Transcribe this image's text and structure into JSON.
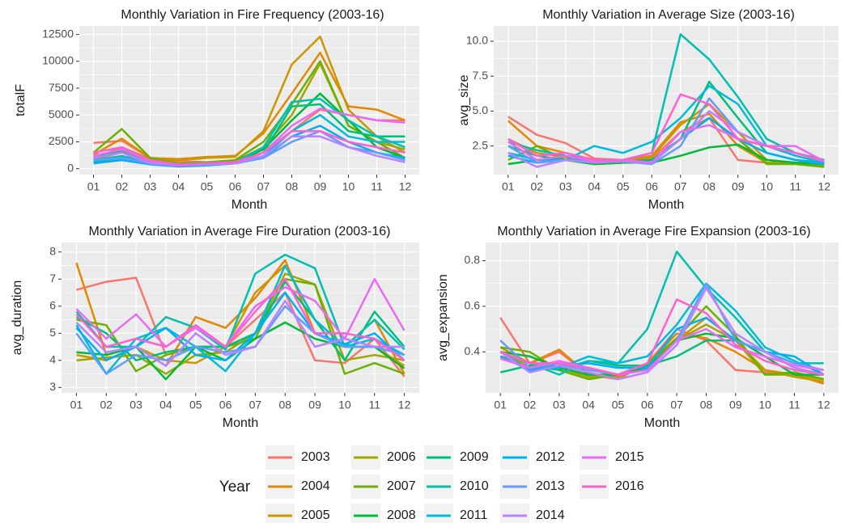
{
  "chart_data": [
    {
      "type": "line",
      "title": "Monthly Variation in Fire Frequency (2003-16)",
      "x_label": "Month",
      "y_label": "totalF",
      "categories": [
        "01",
        "02",
        "03",
        "04",
        "05",
        "06",
        "07",
        "08",
        "09",
        "10",
        "11",
        "12"
      ],
      "ylim": [
        -550,
        13300
      ],
      "yticks": [
        0,
        2500,
        5000,
        7500,
        10000,
        12500
      ],
      "grid": true,
      "series": [
        {
          "values": [
            2400,
            2600,
            1000,
            700,
            600,
            700,
            1500,
            3500,
            5500,
            5000,
            4500,
            4500
          ]
        },
        {
          "values": [
            1300,
            2800,
            1000,
            900,
            1100,
            1200,
            3300,
            7000,
            10800,
            5800,
            5500,
            4500
          ]
        },
        {
          "values": [
            1000,
            2000,
            900,
            800,
            1000,
            1100,
            3500,
            9700,
            12300,
            5500,
            3000,
            1500
          ]
        },
        {
          "values": [
            900,
            1500,
            800,
            500,
            600,
            700,
            2000,
            5000,
            9800,
            4000,
            2500,
            1800
          ]
        },
        {
          "values": [
            1500,
            3700,
            1000,
            500,
            600,
            800,
            2500,
            6000,
            10000,
            4000,
            2500,
            1000
          ]
        },
        {
          "values": [
            600,
            1000,
            600,
            400,
            500,
            600,
            1800,
            4500,
            7000,
            4500,
            2000,
            1000
          ]
        },
        {
          "values": [
            1200,
            1600,
            700,
            400,
            500,
            500,
            1500,
            5800,
            6000,
            3500,
            3000,
            3000
          ]
        },
        {
          "values": [
            800,
            1200,
            600,
            400,
            500,
            600,
            2000,
            6200,
            6500,
            4500,
            3000,
            2000
          ]
        },
        {
          "values": [
            700,
            1000,
            500,
            300,
            400,
            500,
            1200,
            3500,
            5000,
            3000,
            2500,
            2500
          ]
        },
        {
          "values": [
            500,
            800,
            400,
            200,
            300,
            500,
            1000,
            3000,
            4000,
            2500,
            1500,
            1000
          ]
        },
        {
          "values": [
            800,
            1000,
            500,
            300,
            400,
            500,
            1000,
            2500,
            3500,
            2000,
            1500,
            800
          ]
        },
        {
          "values": [
            1000,
            1500,
            500,
            300,
            400,
            500,
            1200,
            3000,
            3000,
            2000,
            1200,
            600
          ]
        },
        {
          "values": [
            1200,
            1800,
            700,
            400,
            500,
            600,
            1500,
            4000,
            5600,
            5000,
            4500,
            4300
          ]
        },
        {
          "values": [
            1500,
            2000,
            800,
            400,
            500,
            600,
            1500,
            3500,
            3500,
            2500,
            2000,
            1500
          ]
        }
      ]
    },
    {
      "type": "line",
      "title": "Monthly Variation in Average Size (2003-16)",
      "x_label": "Month",
      "y_label": "avg_size",
      "categories": [
        "01",
        "02",
        "03",
        "04",
        "05",
        "06",
        "07",
        "08",
        "09",
        "10",
        "11",
        "12"
      ],
      "ylim": [
        0.45,
        11.1
      ],
      "yticks": [
        {
          "value": 2.5,
          "label": "2.5"
        },
        {
          "value": 5,
          "label": "5.0"
        },
        {
          "value": 7.5,
          "label": "7.5"
        },
        {
          "value": 10,
          "label": "10.0"
        }
      ],
      "grid": true,
      "series": [
        {
          "values": [
            4.6,
            3.3,
            2.7,
            1.6,
            1.5,
            1.6,
            3.5,
            4.5,
            1.5,
            1.3,
            1.3,
            1.2
          ]
        },
        {
          "values": [
            4.3,
            2.5,
            2.0,
            1.5,
            1.5,
            1.8,
            4.2,
            4.8,
            2.5,
            1.3,
            1.3,
            1.1
          ]
        },
        {
          "values": [
            3.0,
            2.0,
            1.7,
            1.3,
            1.3,
            1.7,
            4.0,
            5.5,
            3.5,
            1.5,
            1.3,
            1.0
          ]
        },
        {
          "values": [
            2.0,
            1.5,
            1.5,
            1.2,
            1.3,
            1.5,
            3.0,
            4.5,
            3.0,
            1.3,
            1.3,
            1.1
          ]
        },
        {
          "values": [
            1.5,
            2.5,
            1.5,
            1.2,
            1.3,
            1.5,
            3.0,
            4.5,
            3.0,
            1.2,
            1.2,
            1.0
          ]
        },
        {
          "values": [
            1.2,
            1.5,
            1.5,
            1.2,
            1.3,
            1.3,
            1.8,
            2.4,
            2.6,
            1.5,
            1.3,
            1.2
          ]
        },
        {
          "values": [
            2.5,
            1.8,
            1.5,
            1.3,
            1.4,
            1.5,
            3.0,
            7.1,
            4.5,
            2.0,
            1.5,
            1.3
          ]
        },
        {
          "values": [
            2.8,
            2.2,
            1.8,
            1.5,
            1.5,
            2.0,
            10.5,
            8.7,
            6.0,
            3.0,
            2.0,
            1.5
          ]
        },
        {
          "values": [
            2.0,
            1.5,
            1.5,
            2.5,
            2.0,
            2.8,
            4.5,
            6.8,
            5.5,
            2.5,
            1.8,
            1.3
          ]
        },
        {
          "values": [
            1.8,
            1.3,
            1.5,
            1.5,
            1.5,
            1.3,
            3.0,
            4.5,
            3.0,
            2.0,
            1.5,
            1.2
          ]
        },
        {
          "values": [
            2.5,
            1.3,
            1.5,
            1.3,
            1.4,
            1.2,
            2.5,
            5.9,
            3.5,
            2.5,
            2.0,
            1.4
          ]
        },
        {
          "values": [
            2.0,
            1.0,
            1.5,
            1.3,
            1.4,
            1.3,
            3.0,
            5.0,
            3.5,
            2.5,
            2.0,
            1.4
          ]
        },
        {
          "values": [
            2.8,
            1.5,
            1.8,
            1.4,
            1.5,
            1.3,
            3.5,
            4.0,
            3.0,
            2.5,
            2.5,
            1.4
          ]
        },
        {
          "values": [
            3.0,
            1.8,
            2.0,
            1.5,
            1.5,
            2.0,
            6.2,
            5.5,
            3.0,
            2.5,
            2.0,
            1.4
          ]
        }
      ]
    },
    {
      "type": "line",
      "title": "Monthly Variation in Average Fire Duration (2003-16)",
      "x_label": "Month",
      "y_label": "avg_duration",
      "categories": [
        "01",
        "02",
        "03",
        "04",
        "05",
        "06",
        "07",
        "08",
        "09",
        "10",
        "11",
        "12"
      ],
      "ylim": [
        2.8,
        8.35
      ],
      "yticks": [
        3,
        4,
        5,
        6,
        7,
        8
      ],
      "grid": true,
      "series": [
        {
          "values": [
            6.6,
            6.9,
            7.05,
            4.2,
            4.5,
            4.5,
            5.5,
            6.5,
            4.0,
            3.9,
            4.8,
            3.4
          ]
        },
        {
          "values": [
            7.6,
            4.2,
            4.5,
            3.8,
            5.6,
            5.2,
            6.3,
            7.7,
            5.0,
            4.5,
            5.5,
            3.5
          ]
        },
        {
          "values": [
            4.2,
            4.0,
            4.5,
            4.0,
            3.9,
            4.5,
            6.5,
            7.5,
            5.5,
            4.5,
            4.5,
            3.8
          ]
        },
        {
          "values": [
            4.0,
            4.1,
            4.2,
            3.5,
            4.2,
            4.3,
            5.0,
            7.2,
            6.8,
            4.0,
            4.2,
            4.0
          ]
        },
        {
          "values": [
            5.5,
            5.3,
            3.6,
            4.2,
            4.5,
            4.5,
            4.8,
            7.0,
            6.8,
            3.5,
            3.9,
            3.5
          ]
        },
        {
          "values": [
            4.3,
            4.2,
            4.5,
            3.3,
            4.5,
            4.0,
            4.8,
            5.4,
            4.8,
            4.5,
            4.5,
            3.7
          ]
        },
        {
          "values": [
            5.6,
            5.0,
            4.0,
            4.3,
            4.5,
            4.5,
            5.0,
            6.9,
            5.5,
            4.0,
            5.8,
            4.5
          ]
        },
        {
          "values": [
            5.8,
            4.5,
            4.5,
            5.6,
            5.2,
            4.4,
            7.2,
            7.9,
            7.4,
            4.5,
            5.5,
            4.4
          ]
        },
        {
          "values": [
            5.3,
            3.5,
            4.8,
            5.2,
            4.5,
            3.6,
            5.0,
            7.5,
            5.5,
            4.5,
            4.8,
            4.2
          ]
        },
        {
          "values": [
            5.2,
            4.0,
            4.5,
            5.2,
            4.2,
            4.0,
            5.0,
            6.5,
            5.0,
            4.6,
            5.0,
            4.0
          ]
        },
        {
          "values": [
            5.0,
            3.5,
            4.2,
            4.0,
            4.5,
            4.3,
            4.5,
            6.0,
            5.0,
            4.5,
            4.5,
            4.2
          ]
        },
        {
          "values": [
            5.4,
            4.3,
            4.5,
            3.8,
            5.0,
            4.2,
            4.5,
            6.2,
            4.5,
            4.8,
            4.5,
            4.5
          ]
        },
        {
          "values": [
            5.9,
            4.8,
            5.7,
            4.5,
            5.2,
            4.5,
            6.0,
            6.7,
            6.2,
            4.8,
            7.0,
            5.1
          ]
        },
        {
          "values": [
            5.7,
            4.5,
            4.8,
            4.5,
            5.3,
            4.5,
            5.8,
            7.0,
            5.0,
            5.0,
            4.8,
            4.0
          ]
        }
      ]
    },
    {
      "type": "line",
      "title": "Monthly Variation in Average Fire Expansion (2003-16)",
      "x_label": "Month",
      "y_label": "avg_expansion",
      "categories": [
        "01",
        "02",
        "03",
        "04",
        "05",
        "06",
        "07",
        "08",
        "09",
        "10",
        "11",
        "12"
      ],
      "ylim": [
        0.22,
        0.88
      ],
      "yticks": [
        0.4,
        0.6,
        0.8
      ],
      "grid": true,
      "series": [
        {
          "values": [
            0.55,
            0.35,
            0.4,
            0.3,
            0.3,
            0.35,
            0.5,
            0.45,
            0.32,
            0.31,
            0.3,
            0.28
          ]
        },
        {
          "values": [
            0.42,
            0.35,
            0.41,
            0.3,
            0.28,
            0.35,
            0.48,
            0.46,
            0.4,
            0.32,
            0.3,
            0.26
          ]
        },
        {
          "values": [
            0.4,
            0.33,
            0.33,
            0.29,
            0.29,
            0.34,
            0.45,
            0.55,
            0.45,
            0.32,
            0.29,
            0.27
          ]
        },
        {
          "values": [
            0.38,
            0.35,
            0.33,
            0.29,
            0.3,
            0.33,
            0.45,
            0.52,
            0.45,
            0.3,
            0.3,
            0.28
          ]
        },
        {
          "values": [
            0.42,
            0.4,
            0.32,
            0.28,
            0.3,
            0.35,
            0.46,
            0.6,
            0.47,
            0.3,
            0.31,
            0.28
          ]
        },
        {
          "values": [
            0.4,
            0.38,
            0.33,
            0.3,
            0.3,
            0.33,
            0.45,
            0.48,
            0.46,
            0.38,
            0.3,
            0.3
          ]
        },
        {
          "values": [
            0.31,
            0.34,
            0.32,
            0.36,
            0.34,
            0.34,
            0.38,
            0.45,
            0.45,
            0.4,
            0.33,
            0.3
          ]
        },
        {
          "values": [
            0.4,
            0.35,
            0.3,
            0.36,
            0.35,
            0.5,
            0.84,
            0.68,
            0.55,
            0.4,
            0.35,
            0.35
          ]
        },
        {
          "values": [
            0.4,
            0.32,
            0.33,
            0.38,
            0.35,
            0.38,
            0.52,
            0.7,
            0.58,
            0.42,
            0.36,
            0.3
          ]
        },
        {
          "values": [
            0.38,
            0.32,
            0.34,
            0.35,
            0.33,
            0.33,
            0.5,
            0.55,
            0.45,
            0.4,
            0.38,
            0.3
          ]
        },
        {
          "values": [
            0.45,
            0.33,
            0.35,
            0.32,
            0.3,
            0.32,
            0.45,
            0.7,
            0.45,
            0.4,
            0.35,
            0.32
          ]
        },
        {
          "values": [
            0.4,
            0.31,
            0.34,
            0.31,
            0.28,
            0.31,
            0.43,
            0.68,
            0.48,
            0.4,
            0.33,
            0.3
          ]
        },
        {
          "values": [
            0.37,
            0.33,
            0.36,
            0.33,
            0.3,
            0.32,
            0.45,
            0.5,
            0.42,
            0.38,
            0.34,
            0.32
          ]
        },
        {
          "values": [
            0.4,
            0.35,
            0.35,
            0.33,
            0.3,
            0.35,
            0.63,
            0.57,
            0.43,
            0.36,
            0.32,
            0.3
          ]
        }
      ]
    }
  ],
  "legend": {
    "title": "Year",
    "entries": [
      {
        "name": "2003",
        "color": "#F8766D"
      },
      {
        "name": "2004",
        "color": "#E58700"
      },
      {
        "name": "2005",
        "color": "#C99800"
      },
      {
        "name": "2006",
        "color": "#A3A500"
      },
      {
        "name": "2007",
        "color": "#6BB100"
      },
      {
        "name": "2008",
        "color": "#00BA38"
      },
      {
        "name": "2009",
        "color": "#00BF7D"
      },
      {
        "name": "2010",
        "color": "#00C0AF"
      },
      {
        "name": "2011",
        "color": "#00BCD8"
      },
      {
        "name": "2012",
        "color": "#00B0F6"
      },
      {
        "name": "2013",
        "color": "#619CFF"
      },
      {
        "name": "2014",
        "color": "#B983FF"
      },
      {
        "name": "2015",
        "color": "#E76BF3"
      },
      {
        "name": "2016",
        "color": "#FD61D1"
      }
    ]
  }
}
